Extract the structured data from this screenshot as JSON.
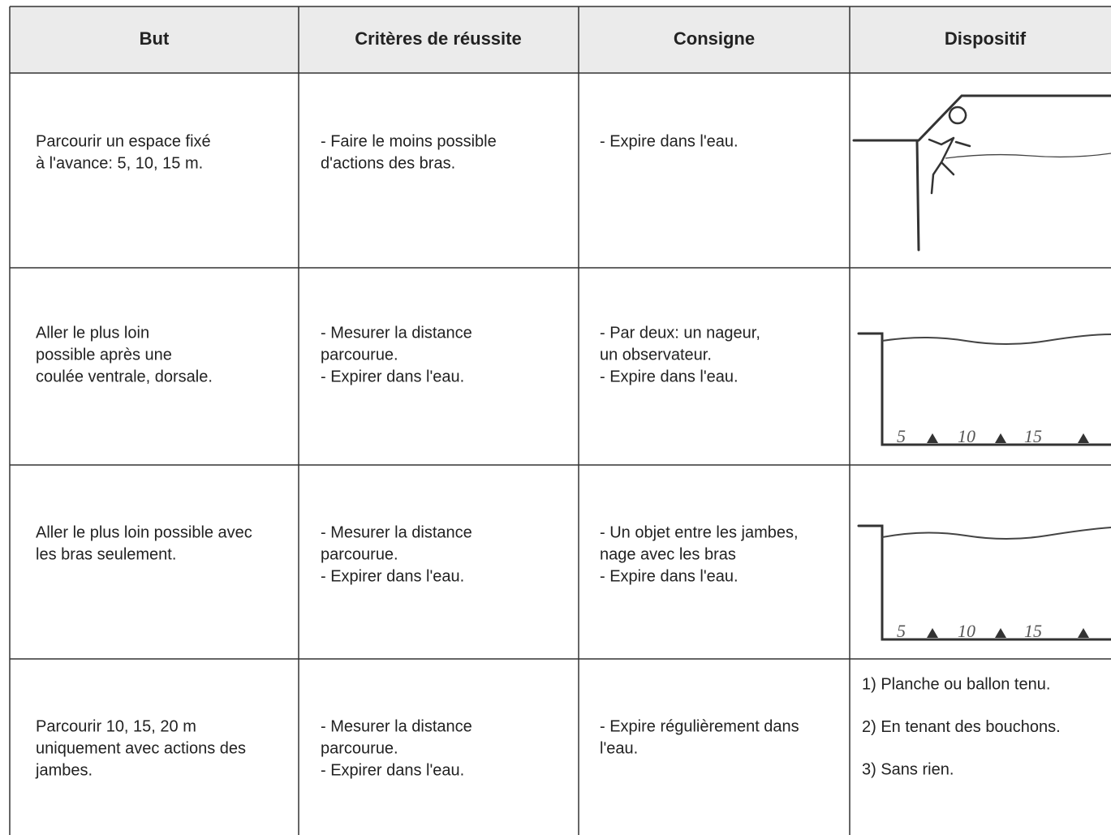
{
  "table": {
    "headers": [
      "But",
      "Critères de réussite",
      "Consigne",
      "Dispositif"
    ],
    "rows": [
      {
        "cells": [
          [
            "Parcourir un espace fixé",
            "à l'avance: 5, 10, 15 m."
          ],
          [
            "- Faire le moins possible",
            "d'actions des bras."
          ],
          [
            "- Expire dans l'eau."
          ]
        ]
      },
      {
        "cells": [
          [
            "Aller le plus loin",
            "possible après une",
            "coulée ventrale, dorsale."
          ],
          [
            "- Mesurer la distance",
            "parcourue.",
            "- Expirer dans l'eau."
          ],
          [
            "- Par deux: un nageur,",
            "un observateur.",
            "- Expire dans l'eau."
          ]
        ],
        "sketch_labels": [
          "5",
          "10",
          "15"
        ]
      },
      {
        "cells": [
          [
            "Aller le plus loin possible avec",
            "les bras seulement."
          ],
          [
            "- Mesurer la distance",
            "parcourue.",
            "- Expirer dans l'eau."
          ],
          [
            "- Un objet entre les jambes,",
            "nage avec les bras",
            "- Expire dans l'eau."
          ]
        ],
        "sketch_labels": [
          "5",
          "10",
          "15"
        ]
      },
      {
        "cells": [
          [
            "Parcourir 10, 15, 20 m",
            "uniquement avec actions des",
            "jambes."
          ],
          [
            "- Mesurer la distance",
            "parcourue.",
            "- Expirer dans l'eau."
          ],
          [
            "- Expire régulièrement dans",
            "l'eau."
          ]
        ],
        "dispositif": [
          "1) Planche ou ballon tenu.",
          "2) En tenant des bouchons.",
          "3) Sans rien."
        ]
      }
    ]
  }
}
